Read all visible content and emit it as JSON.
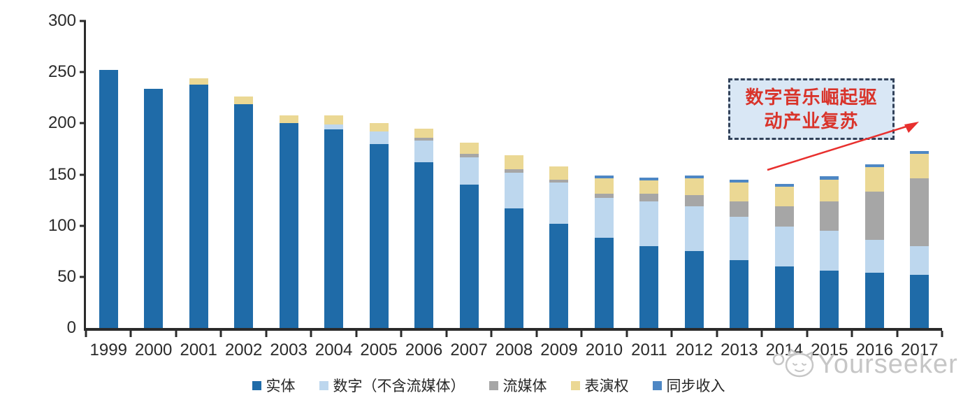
{
  "chart_data": {
    "type": "bar",
    "stacked": true,
    "title": "",
    "xlabel": "",
    "ylabel": "",
    "ylim": [
      0,
      300
    ],
    "yticks": [
      0,
      50,
      100,
      150,
      200,
      250,
      300
    ],
    "grid": false,
    "legend_position": "bottom",
    "categories": [
      "1999",
      "2000",
      "2001",
      "2002",
      "2003",
      "2004",
      "2005",
      "2006",
      "2007",
      "2008",
      "2009",
      "2010",
      "2011",
      "2012",
      "2013",
      "2014",
      "2015",
      "2016",
      "2017"
    ],
    "series": [
      {
        "key": "physical",
        "name": "实体",
        "color": "#1f6ba8",
        "values": [
          252,
          234,
          238,
          219,
          200,
          194,
          180,
          162,
          140,
          117,
          102,
          88,
          80,
          75,
          66,
          60,
          56,
          54,
          52
        ]
      },
      {
        "key": "digital-ex-streaming",
        "name": "数字（不含流媒体）",
        "color": "#bdd7ee",
        "values": [
          0,
          0,
          0,
          0,
          0,
          5,
          12,
          21,
          27,
          35,
          40,
          39,
          44,
          44,
          43,
          39,
          39,
          32,
          28
        ]
      },
      {
        "key": "streaming",
        "name": "流媒体",
        "color": "#a6a6a6",
        "values": [
          0,
          0,
          0,
          0,
          0,
          0,
          0,
          3,
          3,
          3,
          3,
          4,
          7,
          11,
          15,
          20,
          29,
          47,
          66
        ]
      },
      {
        "key": "performance-rights",
        "name": "表演权",
        "color": "#ebd894",
        "values": [
          0,
          0,
          6,
          7,
          8,
          9,
          8,
          9,
          11,
          14,
          13,
          15,
          13,
          16,
          18,
          19,
          21,
          24,
          24
        ]
      },
      {
        "key": "sync",
        "name": "同步收入",
        "color": "#4e87c4",
        "values": [
          0,
          0,
          0,
          0,
          0,
          0,
          0,
          0,
          0,
          0,
          0,
          3,
          3,
          3,
          3,
          3,
          3,
          3,
          3
        ]
      }
    ]
  },
  "annotation": {
    "line1": "数字音乐崛起驱",
    "line2": "动产业复苏",
    "text_color": "#d9342b",
    "box_fill": "#d9e7f5",
    "border_color": "#32425a",
    "arrow_color": "#e8302e"
  },
  "watermark": {
    "text": "Yourseeker",
    "color": "#c6c6c6"
  }
}
